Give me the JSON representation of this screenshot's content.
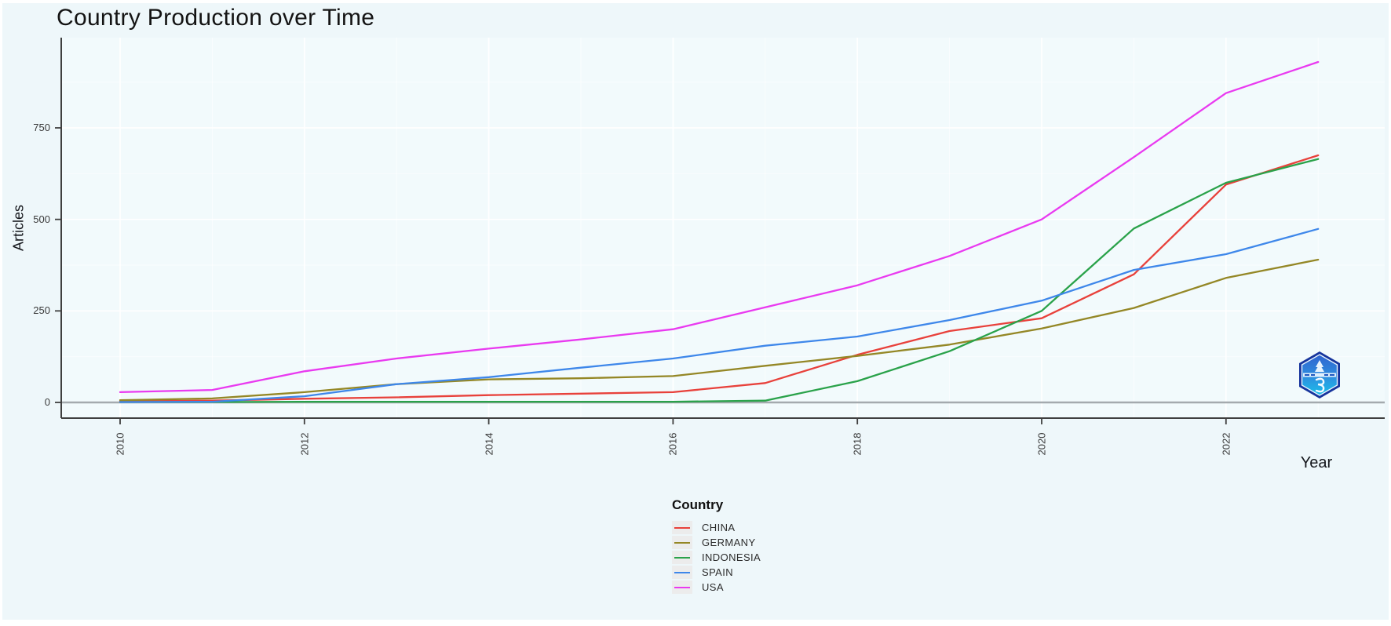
{
  "chart": {
    "title": "Country Production over Time",
    "x_axis": {
      "label": "Year",
      "tick_labels": [
        "2010",
        "2012",
        "2014",
        "2016",
        "2018",
        "2020",
        "2022"
      ]
    },
    "y_axis": {
      "label": "Articles",
      "tick_labels": [
        "0",
        "250",
        "500",
        "750"
      ]
    },
    "legend": {
      "title": "Country",
      "items": [
        {
          "label": "CHINA",
          "color": "#e8413b"
        },
        {
          "label": "GERMANY",
          "color": "#948726"
        },
        {
          "label": "INDONESIA",
          "color": "#2aa24a"
        },
        {
          "label": "SPAIN",
          "color": "#3e87ea"
        },
        {
          "label": "USA",
          "color": "#e93af0"
        }
      ]
    }
  },
  "chart_data": {
    "type": "line",
    "title": "Country Production over Time",
    "xlabel": "Year",
    "ylabel": "Articles",
    "x": [
      2010,
      2011,
      2012,
      2013,
      2014,
      2015,
      2016,
      2017,
      2018,
      2019,
      2020,
      2021,
      2022,
      2023
    ],
    "series": [
      {
        "name": "CHINA",
        "color": "#e8413b",
        "values": [
          3,
          5,
          10,
          14,
          20,
          24,
          28,
          53,
          130,
          195,
          230,
          350,
          595,
          675
        ]
      },
      {
        "name": "GERMANY",
        "color": "#948726",
        "values": [
          6,
          11,
          28,
          50,
          63,
          66,
          72,
          100,
          127,
          158,
          202,
          258,
          340,
          390
        ]
      },
      {
        "name": "INDONESIA",
        "color": "#2aa24a",
        "values": [
          1,
          1,
          2,
          2,
          2,
          2,
          2,
          5,
          58,
          140,
          250,
          475,
          600,
          665
        ]
      },
      {
        "name": "SPAIN",
        "color": "#3e87ea",
        "values": [
          1,
          2,
          17,
          50,
          69,
          95,
          120,
          155,
          180,
          225,
          278,
          362,
          405,
          474
        ]
      },
      {
        "name": "USA",
        "color": "#e93af0",
        "values": [
          28,
          34,
          85,
          120,
          147,
          172,
          200,
          260,
          320,
          400,
          500,
          670,
          845,
          930
        ]
      }
    ],
    "x_breaks": [
      2010,
      2012,
      2014,
      2016,
      2018,
      2020,
      2022
    ],
    "x_minor_breaks": [
      2011,
      2013,
      2015,
      2017,
      2019,
      2021,
      2023
    ],
    "y_breaks": [
      0,
      250,
      500,
      750
    ],
    "y_minor_breaks": [
      125,
      375,
      625,
      875
    ],
    "ylim": [
      0,
      950
    ],
    "xlim": [
      2010,
      2023
    ],
    "grid": "on",
    "zero_line": true,
    "legend_position": "bottom",
    "panel_background": "#f2fafc",
    "canvas_background": "#eef7fa",
    "gridline_color": "#ffffff"
  },
  "logo": {
    "shape": "hexagon-badge",
    "colors": [
      "#16349c",
      "#2f7fdd",
      "#19c0ea",
      "#ffffff"
    ]
  }
}
